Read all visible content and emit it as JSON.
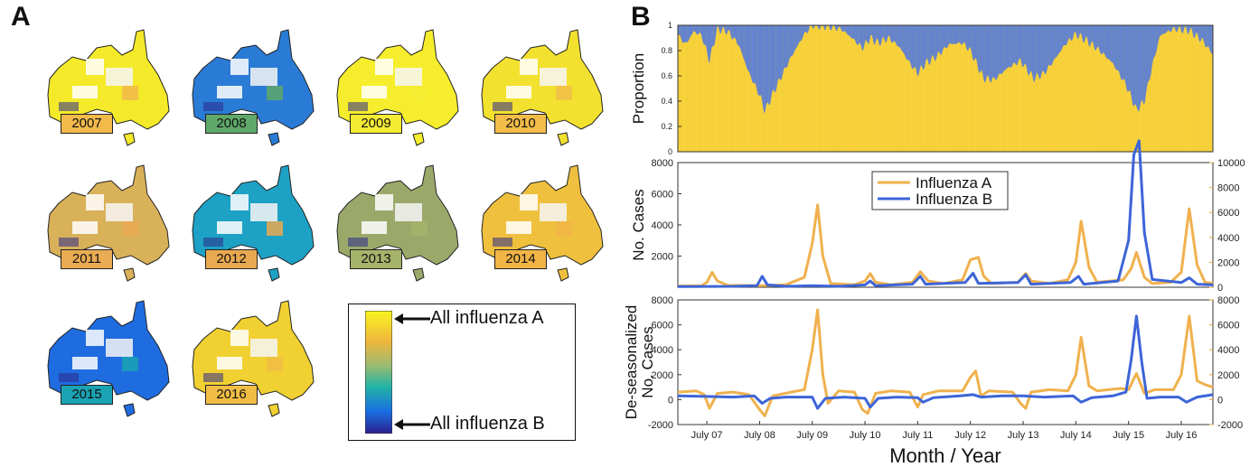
{
  "panel_a": {
    "letter": "A",
    "maps": [
      {
        "year": "2007",
        "badge_color": "#f2b94b",
        "fill": "#f4ea2a"
      },
      {
        "year": "2008",
        "badge_color": "#5fa86a",
        "fill": "#2a7bd6"
      },
      {
        "year": "2009",
        "badge_color": "#f4ec34",
        "fill": "#f6ee2c"
      },
      {
        "year": "2010",
        "badge_color": "#f2bd48",
        "fill": "#f3e12f"
      },
      {
        "year": "2011",
        "badge_color": "#e9ac52",
        "fill": "#d9b159"
      },
      {
        "year": "2012",
        "badge_color": "#e9a950",
        "fill": "#1da1c4"
      },
      {
        "year": "2013",
        "badge_color": "#a6b36b",
        "fill": "#9aa96a"
      },
      {
        "year": "2014",
        "badge_color": "#f2b446",
        "fill": "#efc03d"
      },
      {
        "year": "2015",
        "badge_color": "#1aa3b3",
        "fill": "#1f6be0"
      },
      {
        "year": "2016",
        "badge_color": "#f2bd44",
        "fill": "#f1d132"
      }
    ],
    "legend": {
      "top_label": "All influenza A",
      "bottom_label": "All influenza B"
    }
  },
  "panel_b": {
    "letter": "B"
  },
  "chart_data": [
    {
      "type": "area",
      "title": "",
      "ylabel": "Proportion",
      "ylim": [
        0,
        1
      ],
      "yticks": [
        "0",
        "0.2",
        "0.4",
        "0.6",
        "0.8",
        "1"
      ],
      "series": [
        {
          "color": "#f9d33c"
        },
        {
          "color": "#5b80d9"
        }
      ],
      "x_range": [
        2006.45,
        2016.6
      ],
      "proportion_a_points": [
        [
          2006.45,
          0.92
        ],
        [
          2006.6,
          0.85
        ],
        [
          2006.75,
          0.95
        ],
        [
          2006.9,
          0.92
        ],
        [
          2007.05,
          0.72
        ],
        [
          2007.2,
          0.97
        ],
        [
          2007.4,
          0.95
        ],
        [
          2007.6,
          0.85
        ],
        [
          2007.8,
          0.62
        ],
        [
          2008.0,
          0.45
        ],
        [
          2008.1,
          0.32
        ],
        [
          2008.3,
          0.5
        ],
        [
          2008.6,
          0.75
        ],
        [
          2008.85,
          0.93
        ],
        [
          2009.0,
          1.0
        ],
        [
          2009.3,
          0.99
        ],
        [
          2009.55,
          0.97
        ],
        [
          2009.75,
          0.9
        ],
        [
          2009.95,
          0.82
        ],
        [
          2010.1,
          0.9
        ],
        [
          2010.25,
          0.86
        ],
        [
          2010.45,
          0.9
        ],
        [
          2010.65,
          0.83
        ],
        [
          2010.85,
          0.7
        ],
        [
          2011.0,
          0.62
        ],
        [
          2011.15,
          0.7
        ],
        [
          2011.35,
          0.75
        ],
        [
          2011.6,
          0.85
        ],
        [
          2011.85,
          0.86
        ],
        [
          2012.0,
          0.8
        ],
        [
          2012.25,
          0.58
        ],
        [
          2012.45,
          0.57
        ],
        [
          2012.7,
          0.66
        ],
        [
          2012.95,
          0.72
        ],
        [
          2013.2,
          0.58
        ],
        [
          2013.4,
          0.62
        ],
        [
          2013.6,
          0.73
        ],
        [
          2013.8,
          0.85
        ],
        [
          2014.0,
          0.93
        ],
        [
          2014.2,
          0.88
        ],
        [
          2014.45,
          0.8
        ],
        [
          2014.7,
          0.7
        ],
        [
          2014.95,
          0.53
        ],
        [
          2015.15,
          0.33
        ],
        [
          2015.3,
          0.4
        ],
        [
          2015.45,
          0.68
        ],
        [
          2015.6,
          0.92
        ],
        [
          2015.85,
          0.97
        ],
        [
          2016.15,
          0.96
        ],
        [
          2016.4,
          0.88
        ],
        [
          2016.6,
          0.77
        ]
      ]
    },
    {
      "type": "line",
      "ylabel": "No. Cases",
      "ylim_left": [
        0,
        8000
      ],
      "yticks_left": [
        "2000",
        "4000",
        "6000",
        "8000"
      ],
      "ylim_right": [
        0,
        10000
      ],
      "yticks_right": [
        "0",
        "2000",
        "4000",
        "6000",
        "8000",
        "10000"
      ],
      "series": [
        {
          "name": "Influenza A",
          "color": "#f0b14e",
          "points": [
            [
              2006.45,
              100
            ],
            [
              2006.9,
              120
            ],
            [
              2007.0,
              400
            ],
            [
              2007.1,
              1200
            ],
            [
              2007.2,
              500
            ],
            [
              2007.4,
              150
            ],
            [
              2008.0,
              120
            ],
            [
              2008.5,
              200
            ],
            [
              2008.85,
              800
            ],
            [
              2009.0,
              3500
            ],
            [
              2009.1,
              6600
            ],
            [
              2009.2,
              2500
            ],
            [
              2009.35,
              300
            ],
            [
              2009.8,
              200
            ],
            [
              2010.0,
              500
            ],
            [
              2010.1,
              1100
            ],
            [
              2010.2,
              400
            ],
            [
              2010.5,
              200
            ],
            [
              2010.9,
              400
            ],
            [
              2011.05,
              1250
            ],
            [
              2011.2,
              500
            ],
            [
              2011.5,
              300
            ],
            [
              2011.85,
              600
            ],
            [
              2012.0,
              2200
            ],
            [
              2012.15,
              2400
            ],
            [
              2012.25,
              900
            ],
            [
              2012.4,
              300
            ],
            [
              2012.9,
              400
            ],
            [
              2013.05,
              1100
            ],
            [
              2013.15,
              500
            ],
            [
              2013.5,
              300
            ],
            [
              2013.85,
              600
            ],
            [
              2014.0,
              2000
            ],
            [
              2014.1,
              5300
            ],
            [
              2014.25,
              1600
            ],
            [
              2014.4,
              400
            ],
            [
              2014.9,
              600
            ],
            [
              2015.05,
              1500
            ],
            [
              2015.15,
              2800
            ],
            [
              2015.3,
              800
            ],
            [
              2015.45,
              300
            ],
            [
              2015.8,
              400
            ],
            [
              2016.0,
              1200
            ],
            [
              2016.15,
              6300
            ],
            [
              2016.3,
              1800
            ],
            [
              2016.45,
              400
            ],
            [
              2016.6,
              300
            ]
          ]
        },
        {
          "name": "Influenza B",
          "color": "#3d65d8",
          "points": [
            [
              2006.45,
              40
            ],
            [
              2007.0,
              50
            ],
            [
              2007.5,
              60
            ],
            [
              2007.95,
              100
            ],
            [
              2008.05,
              700
            ],
            [
              2008.15,
              150
            ],
            [
              2008.5,
              60
            ],
            [
              2009.0,
              100
            ],
            [
              2009.5,
              60
            ],
            [
              2010.0,
              150
            ],
            [
              2010.1,
              400
            ],
            [
              2010.2,
              100
            ],
            [
              2010.9,
              200
            ],
            [
              2011.05,
              700
            ],
            [
              2011.15,
              200
            ],
            [
              2011.9,
              300
            ],
            [
              2012.05,
              900
            ],
            [
              2012.15,
              250
            ],
            [
              2012.9,
              300
            ],
            [
              2013.05,
              800
            ],
            [
              2013.15,
              200
            ],
            [
              2013.9,
              300
            ],
            [
              2014.05,
              700
            ],
            [
              2014.15,
              200
            ],
            [
              2014.8,
              400
            ],
            [
              2015.0,
              3000
            ],
            [
              2015.1,
              8500
            ],
            [
              2015.2,
              9400
            ],
            [
              2015.3,
              3500
            ],
            [
              2015.45,
              500
            ],
            [
              2016.0,
              300
            ],
            [
              2016.15,
              600
            ],
            [
              2016.3,
              200
            ],
            [
              2016.6,
              150
            ]
          ]
        }
      ],
      "legend_position": "top-center"
    },
    {
      "type": "line",
      "ylabel": "De-seasonalized No. Cases",
      "ylabel_lines": [
        "De-seasonalized",
        "No. Cases"
      ],
      "xlabel": "Month / Year",
      "ylim_left": [
        -2000,
        8000
      ],
      "yticks_left": [
        "-2000",
        "0",
        "2000",
        "4000",
        "6000",
        "8000"
      ],
      "ylim_right": [
        -2000,
        8000
      ],
      "yticks_right": [
        "-2000",
        "0",
        "2000",
        "4000",
        "6000",
        "8000"
      ],
      "xticks": [
        {
          "x": 2007.0,
          "label": "July 07"
        },
        {
          "x": 2008.0,
          "label": "July 08"
        },
        {
          "x": 2009.0,
          "label": "July 09"
        },
        {
          "x": 2010.0,
          "label": "July 10"
        },
        {
          "x": 2011.0,
          "label": "July 11"
        },
        {
          "x": 2012.0,
          "label": "July 12"
        },
        {
          "x": 2013.0,
          "label": "July 13"
        },
        {
          "x": 2014.0,
          "label": "July 14"
        },
        {
          "x": 2015.0,
          "label": "July 15"
        },
        {
          "x": 2016.0,
          "label": "July 16"
        }
      ],
      "series": [
        {
          "color": "#f0b14e",
          "points": [
            [
              2006.45,
              600
            ],
            [
              2006.8,
              700
            ],
            [
              2006.95,
              400
            ],
            [
              2007.05,
              -700
            ],
            [
              2007.2,
              500
            ],
            [
              2007.5,
              600
            ],
            [
              2007.8,
              400
            ],
            [
              2008.0,
              -800
            ],
            [
              2008.1,
              -1300
            ],
            [
              2008.25,
              300
            ],
            [
              2008.6,
              600
            ],
            [
              2008.85,
              800
            ],
            [
              2009.0,
              4000
            ],
            [
              2009.1,
              7200
            ],
            [
              2009.2,
              2000
            ],
            [
              2009.3,
              -300
            ],
            [
              2009.5,
              700
            ],
            [
              2009.8,
              600
            ],
            [
              2009.95,
              -800
            ],
            [
              2010.05,
              -1100
            ],
            [
              2010.2,
              500
            ],
            [
              2010.5,
              700
            ],
            [
              2010.85,
              600
            ],
            [
              2011.0,
              -600
            ],
            [
              2011.1,
              400
            ],
            [
              2011.4,
              700
            ],
            [
              2011.85,
              700
            ],
            [
              2012.0,
              1800
            ],
            [
              2012.1,
              2300
            ],
            [
              2012.2,
              300
            ],
            [
              2012.35,
              700
            ],
            [
              2012.8,
              600
            ],
            [
              2012.95,
              -300
            ],
            [
              2013.05,
              -700
            ],
            [
              2013.15,
              600
            ],
            [
              2013.5,
              800
            ],
            [
              2013.85,
              700
            ],
            [
              2014.0,
              2000
            ],
            [
              2014.1,
              5000
            ],
            [
              2014.25,
              1100
            ],
            [
              2014.4,
              700
            ],
            [
              2014.85,
              900
            ],
            [
              2015.0,
              800
            ],
            [
              2015.15,
              2100
            ],
            [
              2015.3,
              500
            ],
            [
              2015.5,
              800
            ],
            [
              2015.85,
              800
            ],
            [
              2016.0,
              2000
            ],
            [
              2016.15,
              6700
            ],
            [
              2016.3,
              1500
            ],
            [
              2016.45,
              1200
            ],
            [
              2016.6,
              1000
            ]
          ]
        },
        {
          "color": "#3d65d8",
          "points": [
            [
              2006.45,
              300
            ],
            [
              2007.0,
              250
            ],
            [
              2007.5,
              200
            ],
            [
              2007.9,
              300
            ],
            [
              2008.05,
              -300
            ],
            [
              2008.2,
              100
            ],
            [
              2008.5,
              200
            ],
            [
              2009.0,
              200
            ],
            [
              2009.1,
              -700
            ],
            [
              2009.25,
              100
            ],
            [
              2009.6,
              200
            ],
            [
              2010.0,
              100
            ],
            [
              2010.1,
              -600
            ],
            [
              2010.25,
              100
            ],
            [
              2010.6,
              200
            ],
            [
              2011.0,
              150
            ],
            [
              2011.1,
              -200
            ],
            [
              2011.3,
              150
            ],
            [
              2011.8,
              300
            ],
            [
              2012.05,
              400
            ],
            [
              2012.2,
              200
            ],
            [
              2012.6,
              300
            ],
            [
              2013.0,
              300
            ],
            [
              2013.4,
              200
            ],
            [
              2013.95,
              300
            ],
            [
              2014.1,
              -200
            ],
            [
              2014.3,
              150
            ],
            [
              2014.7,
              300
            ],
            [
              2014.95,
              600
            ],
            [
              2015.05,
              3200
            ],
            [
              2015.15,
              6700
            ],
            [
              2015.25,
              3000
            ],
            [
              2015.35,
              100
            ],
            [
              2015.6,
              200
            ],
            [
              2015.95,
              200
            ],
            [
              2016.1,
              -200
            ],
            [
              2016.3,
              200
            ],
            [
              2016.6,
              400
            ]
          ]
        }
      ]
    }
  ]
}
